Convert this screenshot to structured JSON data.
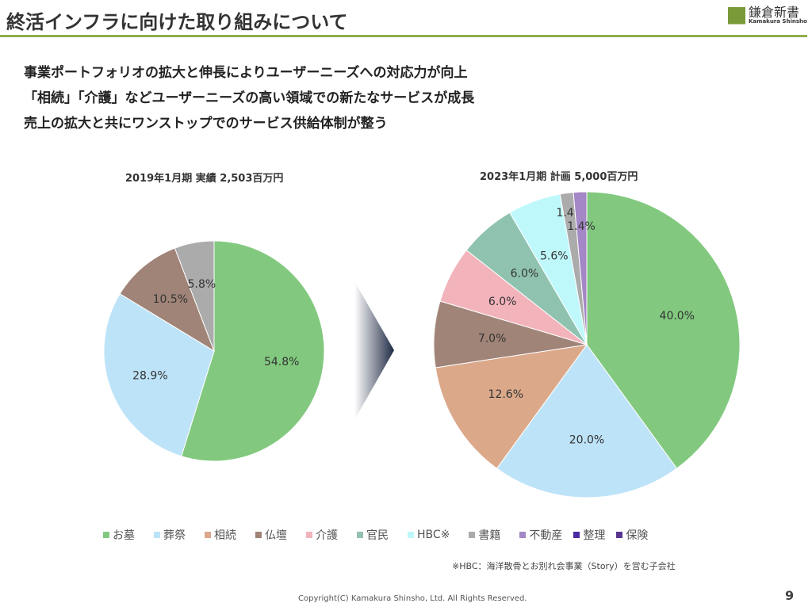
{
  "header": {
    "title": "終活インフラに向けた取り組みについて",
    "logo_jp": "鎌倉新書",
    "logo_en": "Kamakura Shinsho"
  },
  "bullets": [
    "事業ポートフォリオの拡大と伸長によりユーザーニーズへの対応力が向上",
    "「相続」「介護」などユーザーニーズの高い領域での新たなサービスが成長",
    "売上の拡大と共にワンストップでのサービス供給体制が整う"
  ],
  "chart_data": [
    {
      "type": "pie",
      "title": "2019年1月期 実績 2,503百万円",
      "labels": [
        "お墓",
        "葬祭",
        "仏壇",
        "書籍"
      ],
      "values": [
        54.8,
        28.9,
        10.5,
        5.8
      ],
      "value_labels": [
        "54.8%",
        "28.9%",
        "10.5%",
        "5.8%"
      ],
      "colors": [
        "#82c97f",
        "#bde3f8",
        "#a08478",
        "#ababab"
      ]
    },
    {
      "type": "pie",
      "title": "2023年1月期 計画 5,000百万円",
      "labels": [
        "お墓",
        "葬祭",
        "相続",
        "仏壇",
        "介護",
        "官民",
        "HBC",
        "書籍",
        "不動産"
      ],
      "values": [
        40.0,
        20.0,
        12.6,
        7.0,
        6.0,
        6.0,
        5.6,
        1.4,
        1.4
      ],
      "value_labels": [
        "40.0%",
        "20.0%",
        "12.6%",
        "7.0%",
        "6.0%",
        "6.0%",
        "5.6%",
        "1.4%",
        "1.4%"
      ],
      "colors": [
        "#82c97f",
        "#bde3f8",
        "#dba98a",
        "#a08478",
        "#f2b3bb",
        "#8fc3b0",
        "#bff8fb",
        "#ababab",
        "#a487c6"
      ]
    }
  ],
  "legend": [
    {
      "label": "お墓",
      "color": "#82c97f"
    },
    {
      "label": "葬祭",
      "color": "#bde3f8"
    },
    {
      "label": "相続",
      "color": "#dba98a"
    },
    {
      "label": "仏壇",
      "color": "#a08478"
    },
    {
      "label": "介護",
      "color": "#f2b3bb"
    },
    {
      "label": "官民",
      "color": "#8fc3b0"
    },
    {
      "label": "HBC※",
      "color": "#bff8fb"
    },
    {
      "label": "書籍",
      "color": "#ababab"
    },
    {
      "label": "不動産",
      "color": "#a487c6"
    },
    {
      "label": "整理",
      "color": "#4b2b9e"
    },
    {
      "label": "保険",
      "color": "#5a3590"
    }
  ],
  "note": "※HBC：海洋散骨とお別れ会事業（Story）を営む子会社",
  "footer": {
    "copyright": "Copyright(C) Kamakura Shinsho, Ltd. All Rights Reserved.",
    "page": "9"
  }
}
